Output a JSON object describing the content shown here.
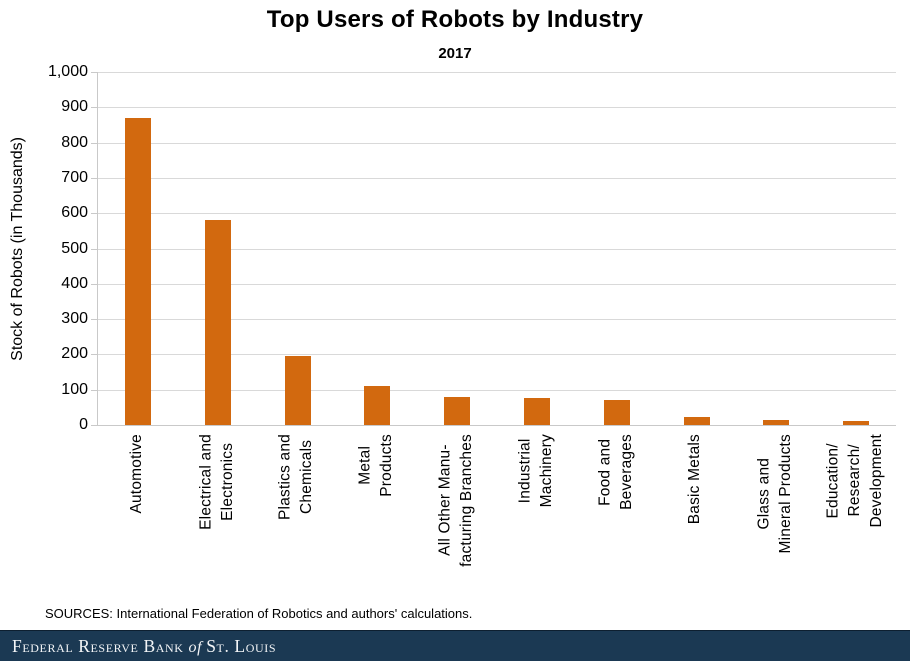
{
  "chart_data": {
    "type": "bar",
    "title": "Top Users of Robots by Industry",
    "subtitle": "2017",
    "ylabel": "Stock of Robots (in Thousands)",
    "xlabel": "",
    "ylim": [
      0,
      1000
    ],
    "grid": true,
    "legend": false,
    "y_ticks": [
      1000,
      900,
      800,
      700,
      600,
      500,
      400,
      300,
      200,
      100,
      0
    ],
    "y_tick_labels": [
      "1,000",
      "900",
      "800",
      "700",
      "600",
      "500",
      "400",
      "300",
      "200",
      "100",
      "0"
    ],
    "categories": [
      "Automotive",
      "Electrical and Electronics",
      "Plastics and Chemicals",
      "Metal Products",
      "All Other Manufacturing Branches",
      "Industrial Machinery",
      "Food and Beverages",
      "Basic Metals",
      "Glass and Mineral Products",
      "Education/Research/Development"
    ],
    "category_lines": [
      [
        "Automotive"
      ],
      [
        "Electrical and",
        "Electronics"
      ],
      [
        "Plastics and",
        "Chemicals"
      ],
      [
        "Metal",
        "Products"
      ],
      [
        "All Other Manu-",
        "facturing Branches"
      ],
      [
        "Industrial",
        "Machinery"
      ],
      [
        "Food and",
        "Beverages"
      ],
      [
        "Basic Metals"
      ],
      [
        "Glass and",
        "Mineral Products"
      ],
      [
        "Education/",
        "Research/",
        "Development"
      ]
    ],
    "values": [
      870,
      580,
      195,
      110,
      80,
      77,
      71,
      24,
      14,
      10
    ],
    "colors": {
      "bar": "#D2690F",
      "gridline": "#D9D9D9",
      "axis": "#C9C9C9",
      "text": "#000000"
    }
  },
  "sources_note": "SOURCES: International  Federation of Robotics and authors' calculations.",
  "brand_bar": {
    "bg": "#1B3953",
    "name_part1": "Federal Reserve Bank",
    "name_part2": "of",
    "name_part3": "St. Louis"
  }
}
